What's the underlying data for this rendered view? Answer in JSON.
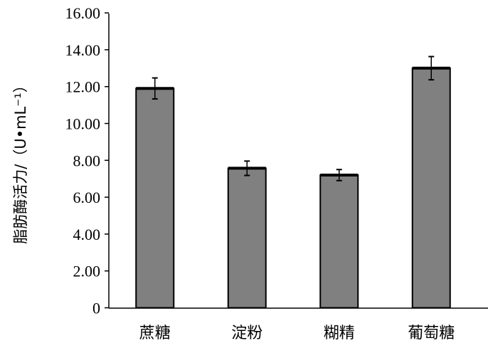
{
  "chart_data": {
    "type": "bar",
    "title": "",
    "xlabel": "",
    "ylabel": "脂肪酶活力/（U•mL⁻¹）",
    "ylim": [
      0,
      16
    ],
    "yticks": [
      0,
      2,
      4,
      6,
      8,
      10,
      12,
      14,
      16
    ],
    "ytick_labels": [
      "0",
      "2.00",
      "4.00",
      "6.00",
      "8.00",
      "10.00",
      "12.00",
      "14.00",
      "16.00"
    ],
    "categories": [
      "蔗糖",
      "淀粉",
      "糊精",
      "葡萄糖"
    ],
    "values": [
      11.9,
      7.57,
      7.2,
      13.0
    ],
    "errors": [
      0.57,
      0.39,
      0.3,
      0.63
    ],
    "grid": false,
    "colors": {
      "bar_fill": "#808080",
      "bar_edge": "#000000"
    }
  }
}
